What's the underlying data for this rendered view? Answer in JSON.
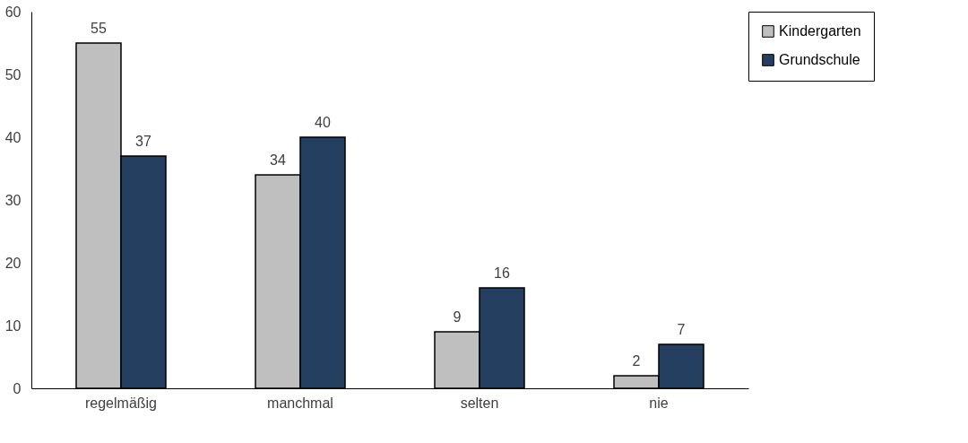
{
  "chart_data": {
    "type": "bar",
    "categories": [
      "regelmäßig",
      "manchmal",
      "selten",
      "nie"
    ],
    "series": [
      {
        "name": "Kindergarten",
        "color": "#bfbfbf",
        "values": [
          55,
          34,
          9,
          2
        ]
      },
      {
        "name": "Grundschule",
        "color": "#243f60",
        "values": [
          37,
          40,
          16,
          7
        ]
      }
    ],
    "ylim": [
      0,
      60
    ],
    "yticks": [
      0,
      10,
      20,
      30,
      40,
      50,
      60
    ],
    "grid": false,
    "legend": "right",
    "data_labels": true
  }
}
